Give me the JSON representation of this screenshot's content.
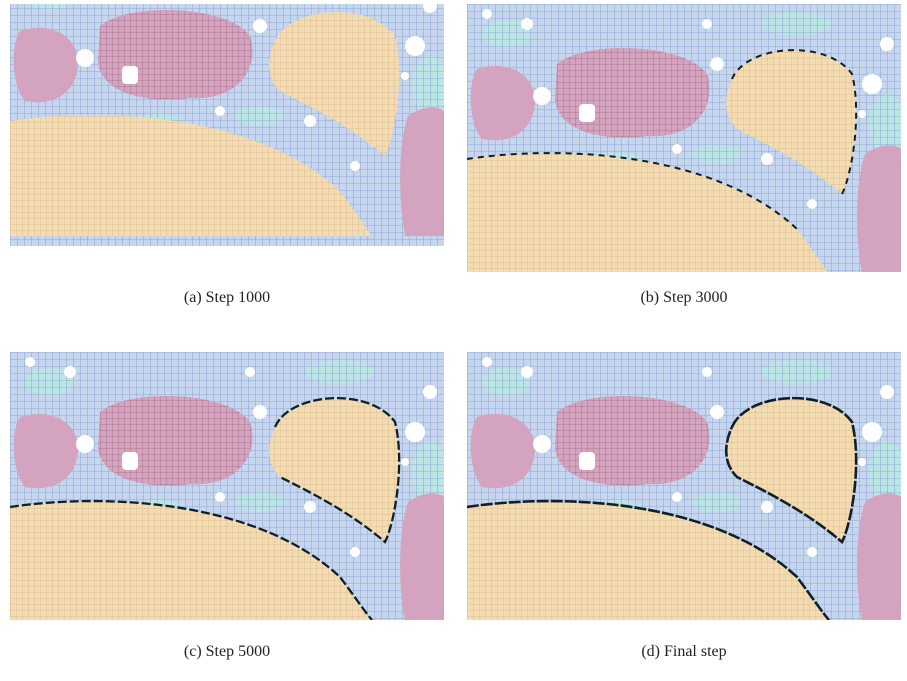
{
  "figure": {
    "panels": [
      {
        "caption": "(a) Step 1000"
      },
      {
        "caption": "(b) Step 3000"
      },
      {
        "caption": "(c) Step 5000"
      },
      {
        "caption": "(d) Final step"
      }
    ]
  }
}
